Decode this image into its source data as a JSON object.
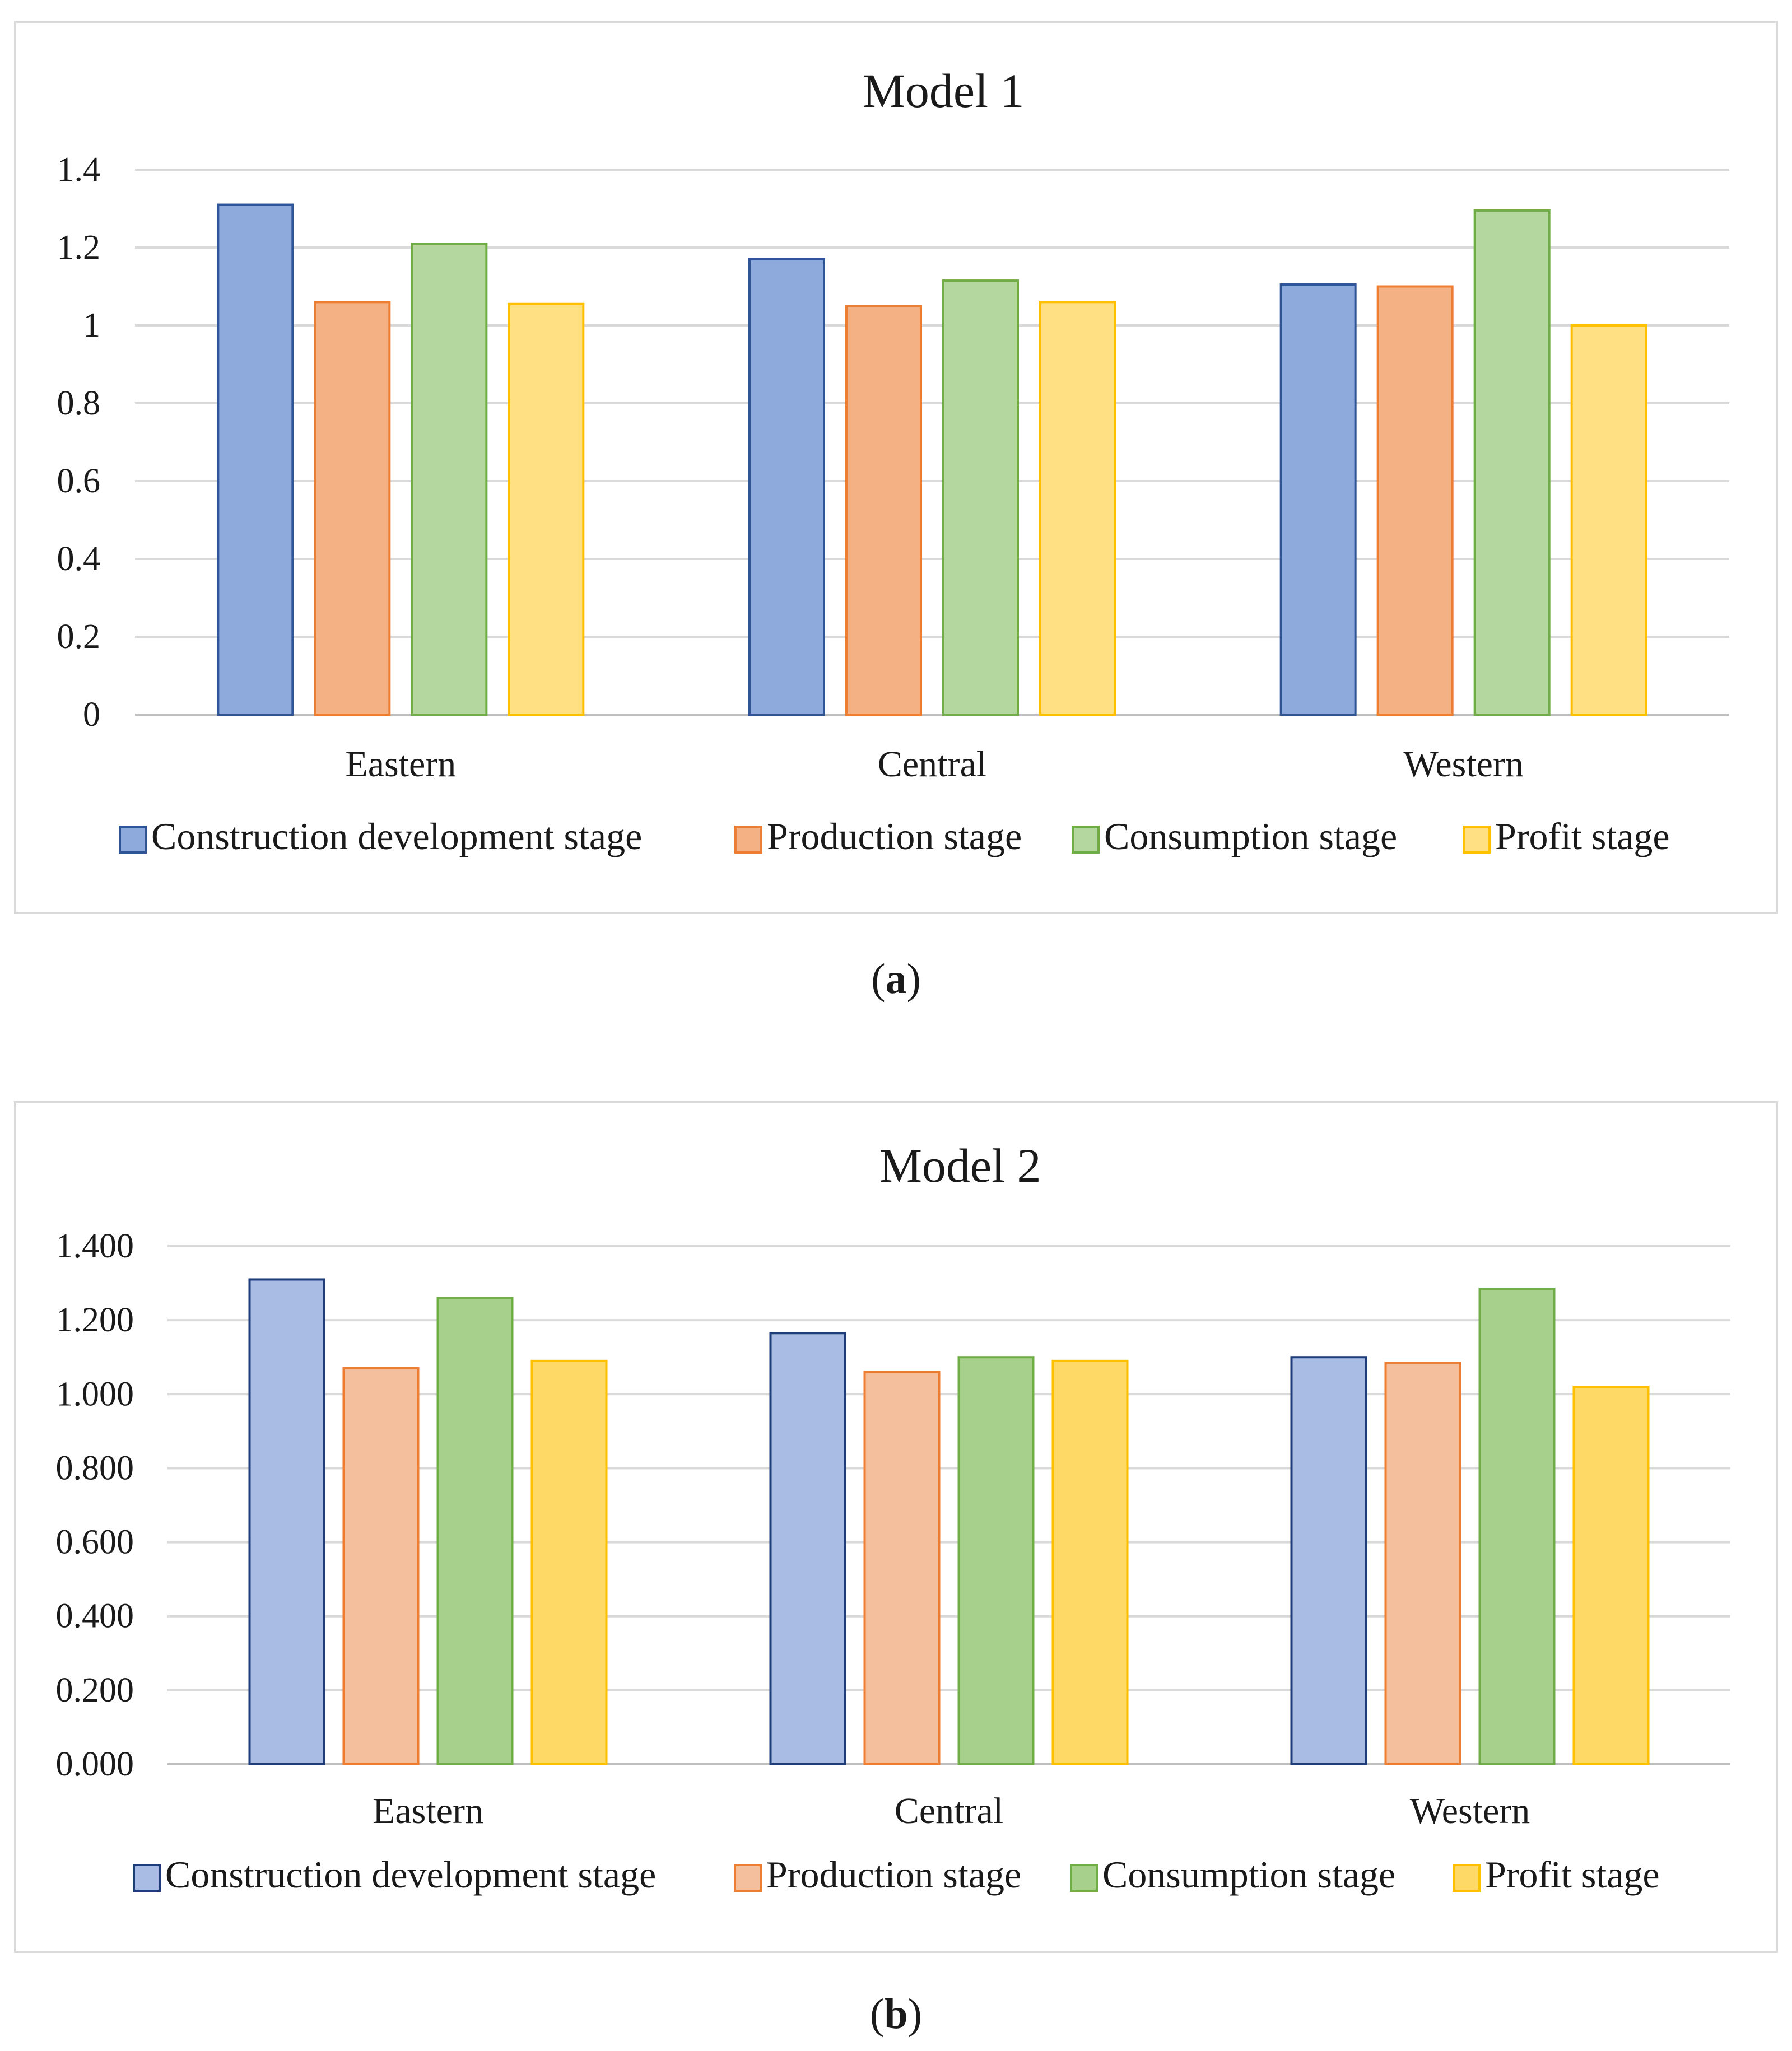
{
  "charts": [
    {
      "panel_id": "panel-a",
      "caption_letter": "a",
      "title": "Model 1",
      "type": "bar",
      "categories": [
        "Eastern",
        "Central",
        "Western"
      ],
      "ylim": [
        0,
        1.4
      ],
      "ystep": 0.2,
      "tick_labels": [
        "0",
        "0.2",
        "0.4",
        "0.6",
        "0.8",
        "1",
        "1.2",
        "1.4"
      ],
      "series": [
        {
          "name": "Construction development stage",
          "values": [
            1.31,
            1.17,
            1.105
          ],
          "fill": "#8EA9DB",
          "stroke": "#2F5597"
        },
        {
          "name": "Production stage",
          "values": [
            1.06,
            1.05,
            1.1
          ],
          "fill": "#F4B183",
          "stroke": "#ED7D31"
        },
        {
          "name": "Consumption stage",
          "values": [
            1.21,
            1.115,
            1.295
          ],
          "fill": "#B4D7A0",
          "stroke": "#70AD47"
        },
        {
          "name": "Profit stage",
          "values": [
            1.055,
            1.06,
            1.0
          ],
          "fill": "#FFE083",
          "stroke": "#FFC000"
        }
      ],
      "legend_position": "bottom"
    },
    {
      "panel_id": "panel-b",
      "caption_letter": "b",
      "title": "Model 2",
      "type": "bar",
      "categories": [
        "Eastern",
        "Central",
        "Western"
      ],
      "ylim": [
        0,
        1.4
      ],
      "ystep": 0.2,
      "tick_labels": [
        "0.000",
        "0.200",
        "0.400",
        "0.600",
        "0.800",
        "1.000",
        "1.200",
        "1.400"
      ],
      "series": [
        {
          "name": "Construction development stage",
          "values": [
            1.31,
            1.165,
            1.1
          ],
          "fill": "#A9BCE4",
          "stroke": "#1F3D7A"
        },
        {
          "name": "Production stage",
          "values": [
            1.07,
            1.06,
            1.085
          ],
          "fill": "#F4BF9C",
          "stroke": "#ED7D31"
        },
        {
          "name": "Consumption stage",
          "values": [
            1.26,
            1.1,
            1.285
          ],
          "fill": "#A8D08D",
          "stroke": "#70AD47"
        },
        {
          "name": "Profit stage",
          "values": [
            1.09,
            1.09,
            1.02
          ],
          "fill": "#FFD966",
          "stroke": "#FFC000"
        }
      ],
      "legend_position": "bottom"
    }
  ]
}
